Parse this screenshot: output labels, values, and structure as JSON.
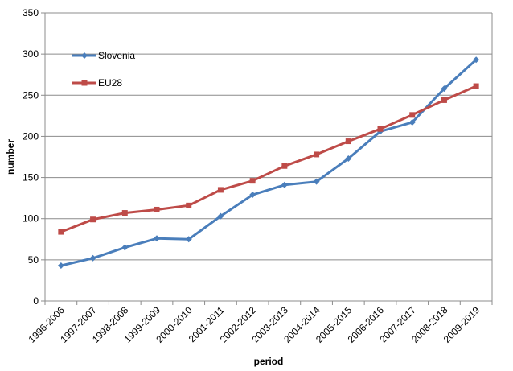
{
  "chart_data": {
    "type": "line",
    "xlabel": "period",
    "ylabel": "number",
    "ylim": [
      0,
      350
    ],
    "yticks": [
      0,
      50,
      100,
      150,
      200,
      250,
      300,
      350
    ],
    "grid": "horizontal",
    "legend_position": "top-left",
    "categories": [
      "1996-2006",
      "1997-2007",
      "1998-2008",
      "1999-2009",
      "2000-2010",
      "2001-2011",
      "2002-2012",
      "2003-2013",
      "2004-2014",
      "2005-2015",
      "2006-2016",
      "2007-2017",
      "2008-2018",
      "2009-2019"
    ],
    "series": [
      {
        "name": "Slovenia",
        "color": "#4a7ebb",
        "marker": "diamond",
        "values": [
          43,
          52,
          65,
          76,
          75,
          103,
          129,
          141,
          145,
          173,
          206,
          217,
          258,
          293
        ]
      },
      {
        "name": "EU28",
        "color": "#be4b48",
        "marker": "square",
        "values": [
          84,
          99,
          107,
          111,
          116,
          135,
          146,
          164,
          178,
          194,
          209,
          226,
          244,
          261
        ]
      }
    ]
  }
}
